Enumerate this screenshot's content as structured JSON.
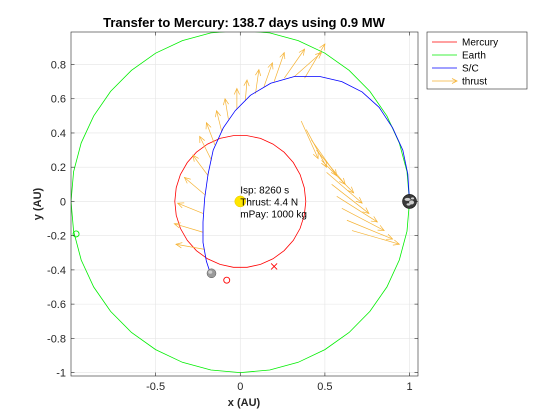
{
  "chart_data": {
    "type": "line",
    "title": "Transfer to Mercury: 138.7 days using 0.9 MW",
    "xlabel": "x (AU)",
    "ylabel": "y (AU)",
    "xlim": [
      -1.0,
      1.05
    ],
    "ylim": [
      -1.02,
      0.99
    ],
    "x_ticks": [
      -0.5,
      0,
      0.5,
      1
    ],
    "x_tick_labels": [
      "-0.5",
      "0",
      "0.5",
      "1"
    ],
    "y_ticks": [
      -1,
      -0.8,
      -0.6,
      -0.4,
      -0.2,
      0,
      0.2,
      0.4,
      0.6,
      0.8
    ],
    "y_tick_labels": [
      "-1",
      "-0.8",
      "-0.6",
      "-0.4",
      "-0.2",
      "0",
      "0.2",
      "0.4",
      "0.6",
      "0.8"
    ],
    "grid": true,
    "legend_position": "top-right",
    "colors": {
      "mercury": "#ff0000",
      "earth": "#00ee00",
      "sc": "#0000ff",
      "thrust": "#f5b335",
      "sun": "#ffe600"
    },
    "series": [
      {
        "name": "Mercury",
        "kind": "circle",
        "center": [
          0,
          0
        ],
        "radius": 0.387
      },
      {
        "name": "Earth",
        "kind": "circle",
        "center": [
          0,
          0
        ],
        "radius": 1.0
      },
      {
        "name": "S/C",
        "kind": "path",
        "points": [
          [
            1.0,
            0.0
          ],
          [
            0.99,
            0.16
          ],
          [
            0.96,
            0.3
          ],
          [
            0.9,
            0.43
          ],
          [
            0.82,
            0.55
          ],
          [
            0.72,
            0.64
          ],
          [
            0.6,
            0.7
          ],
          [
            0.47,
            0.73
          ],
          [
            0.32,
            0.73
          ],
          [
            0.18,
            0.69
          ],
          [
            0.06,
            0.62
          ],
          [
            -0.03,
            0.53
          ],
          [
            -0.1,
            0.43
          ],
          [
            -0.16,
            0.3
          ],
          [
            -0.19,
            0.16
          ],
          [
            -0.21,
            0.02
          ],
          [
            -0.22,
            -0.12
          ],
          [
            -0.22,
            -0.24
          ],
          [
            -0.2,
            -0.35
          ],
          [
            -0.17,
            -0.44
          ]
        ]
      },
      {
        "name": "thrust",
        "kind": "arrows",
        "vectors": [
          [
            0.36,
            0.47,
            0.1,
            -0.22
          ],
          [
            0.39,
            0.42,
            0.12,
            -0.22
          ],
          [
            0.42,
            0.36,
            0.15,
            -0.21
          ],
          [
            0.45,
            0.3,
            0.17,
            -0.2
          ],
          [
            0.48,
            0.24,
            0.19,
            -0.19
          ],
          [
            0.51,
            0.17,
            0.21,
            -0.18
          ],
          [
            0.54,
            0.1,
            0.22,
            -0.17
          ],
          [
            0.57,
            0.03,
            0.24,
            -0.15
          ],
          [
            0.6,
            -0.04,
            0.25,
            -0.13
          ],
          [
            0.63,
            -0.11,
            0.27,
            -0.11
          ],
          [
            0.66,
            -0.17,
            0.28,
            -0.08
          ],
          [
            0.38,
            0.72,
            0.12,
            0.2
          ],
          [
            0.32,
            0.73,
            0.16,
            0.14
          ],
          [
            0.26,
            0.72,
            0.12,
            0.17
          ],
          [
            0.2,
            0.7,
            0.06,
            0.17
          ],
          [
            0.14,
            0.67,
            0.05,
            0.14
          ],
          [
            0.09,
            0.63,
            0.02,
            0.14
          ],
          [
            0.03,
            0.59,
            0.01,
            0.12
          ],
          [
            -0.02,
            0.54,
            0.0,
            0.12
          ],
          [
            -0.07,
            0.48,
            -0.02,
            0.12
          ],
          [
            -0.11,
            0.41,
            -0.03,
            0.12
          ],
          [
            -0.15,
            0.33,
            -0.05,
            0.13
          ],
          [
            -0.17,
            0.24,
            -0.07,
            0.14
          ],
          [
            -0.19,
            0.15,
            -0.09,
            0.12
          ],
          [
            -0.21,
            0.04,
            -0.12,
            0.1
          ],
          [
            -0.22,
            -0.07,
            -0.15,
            0.06
          ],
          [
            -0.22,
            -0.18,
            -0.17,
            0.05
          ],
          [
            -0.21,
            -0.28,
            -0.17,
            0.03
          ]
        ]
      },
      {
        "name": "",
        "kind": "markers",
        "points": [
          {
            "x": 0.2,
            "y": -0.38,
            "symbol": "x",
            "color": "#ff0000"
          },
          {
            "x": -0.08,
            "y": -0.46,
            "symbol": "o",
            "color": "#ff0000"
          },
          {
            "x": -0.97,
            "y": -0.19,
            "symbol": "o",
            "color": "#00ee00"
          }
        ]
      },
      {
        "name": "",
        "kind": "bodies",
        "points": [
          {
            "x": 0,
            "y": 0,
            "body": "sun",
            "color": "#ffe600"
          },
          {
            "x": 1.0,
            "y": 0.0,
            "body": "earth"
          },
          {
            "x": -0.17,
            "y": -0.42,
            "body": "mercury"
          }
        ]
      }
    ],
    "annotations": [
      {
        "text": "Isp: 8260 s",
        "x": 0.0,
        "y": 0.07
      },
      {
        "text": "Thrust: 4.4 N",
        "x": 0.0,
        "y": 0.0
      },
      {
        "text": "mPay: 1000 kg",
        "x": 0.0,
        "y": -0.07
      }
    ],
    "legend": [
      "Mercury",
      "Earth",
      "S/C",
      "thrust"
    ]
  }
}
